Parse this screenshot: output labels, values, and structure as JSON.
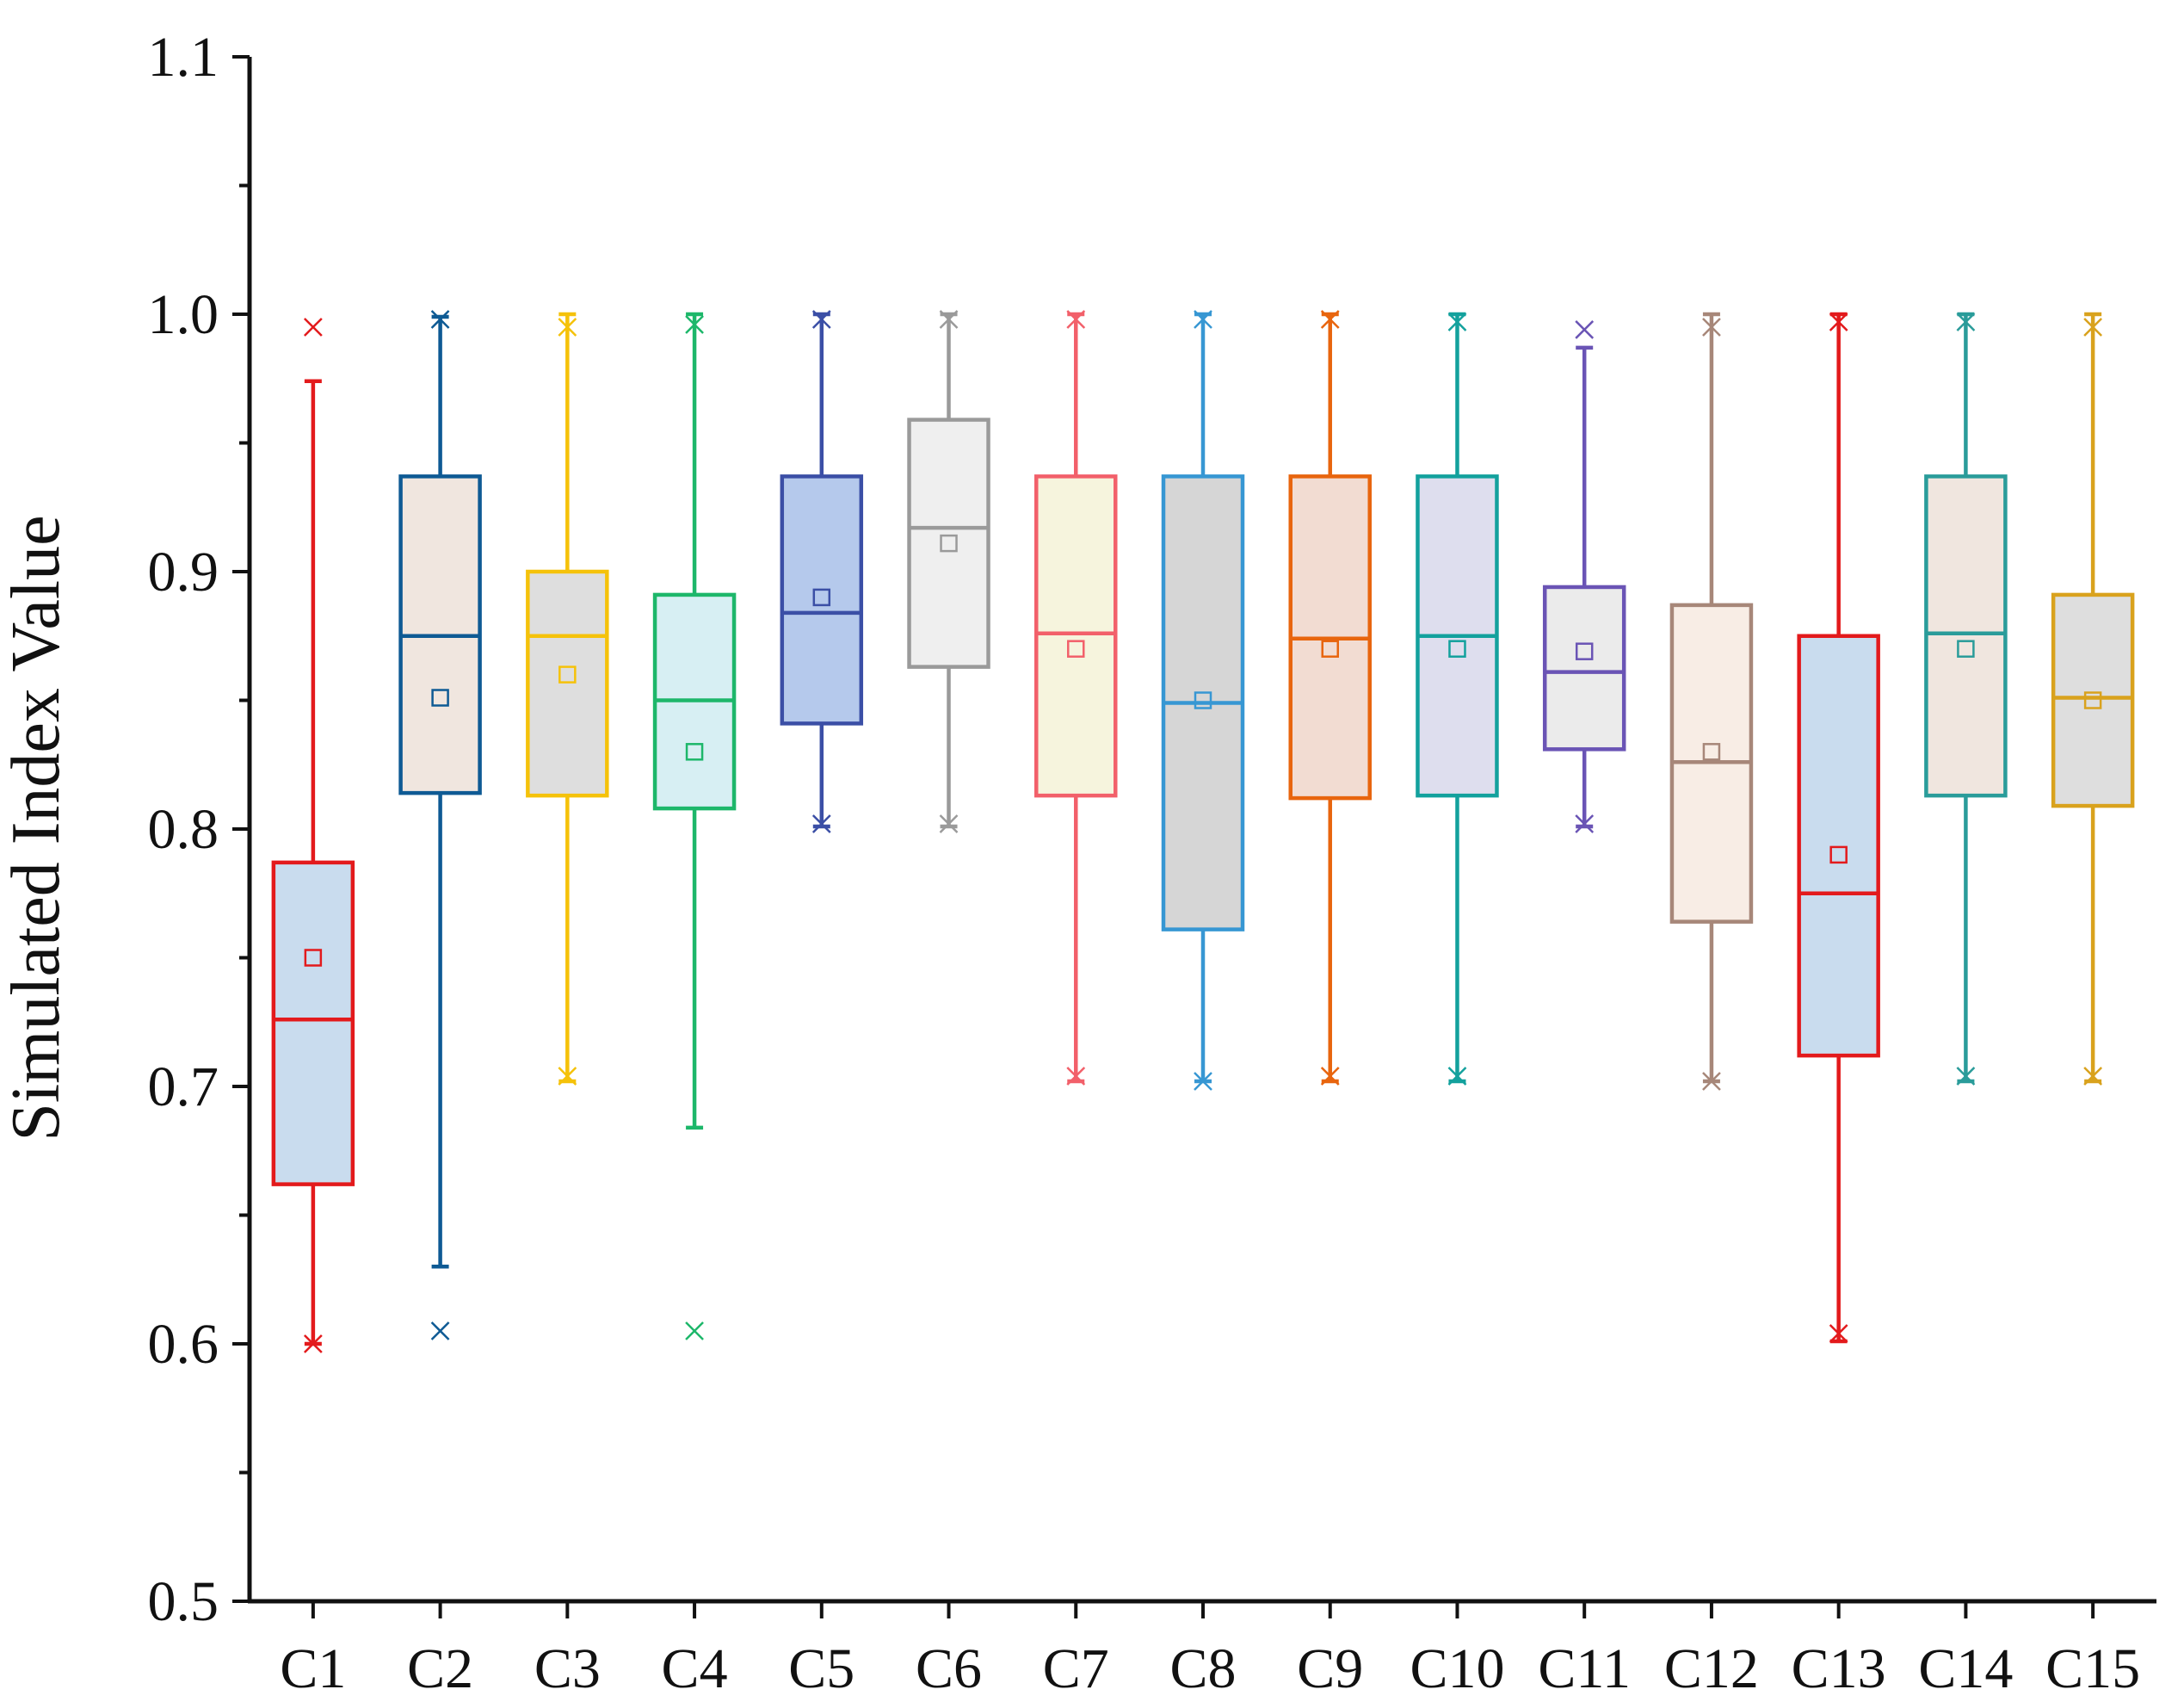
{
  "chart_data": {
    "type": "box",
    "title": "",
    "xlabel": "",
    "ylabel": "Simulated Index Value",
    "ylim": [
      0.5,
      1.1
    ],
    "yticks": [
      "0.5",
      "0.6",
      "0.7",
      "0.8",
      "0.9",
      "1.0",
      "1.1"
    ],
    "grid": false,
    "legend": "none",
    "series": [
      {
        "name": "C1",
        "color": "#e31a1c",
        "fill": "#c9dcee",
        "whisker_low": 0.6,
        "q1": 0.662,
        "median": 0.726,
        "q3": 0.787,
        "whisker_high": 0.974,
        "mean": 0.75,
        "x_min": 0.6,
        "x_max": 0.995
      },
      {
        "name": "C2",
        "color": "#0e5a94",
        "fill": "#f0e6df",
        "whisker_low": 0.63,
        "q1": 0.814,
        "median": 0.875,
        "q3": 0.937,
        "whisker_high": 0.999,
        "mean": 0.851,
        "x_min": 0.605,
        "x_max": 0.998
      },
      {
        "name": "C3",
        "color": "#f5c20a",
        "fill": "#dedede",
        "whisker_low": 0.702,
        "q1": 0.813,
        "median": 0.875,
        "q3": 0.9,
        "whisker_high": 1.0,
        "mean": 0.86,
        "x_min": 0.704,
        "x_max": 0.995
      },
      {
        "name": "C4",
        "color": "#1db76a",
        "fill": "#d7eff3",
        "whisker_low": 0.684,
        "q1": 0.808,
        "median": 0.85,
        "q3": 0.891,
        "whisker_high": 1.0,
        "mean": 0.83,
        "x_min": 0.605,
        "x_max": 0.996
      },
      {
        "name": "C5",
        "color": "#3b4fa6",
        "fill": "#b5c9ec",
        "whisker_low": 0.801,
        "q1": 0.841,
        "median": 0.884,
        "q3": 0.937,
        "whisker_high": 1.0,
        "mean": 0.89,
        "x_min": 0.802,
        "x_max": 0.998
      },
      {
        "name": "C6",
        "color": "#9a9a9a",
        "fill": "#efefef",
        "whisker_low": 0.801,
        "q1": 0.863,
        "median": 0.917,
        "q3": 0.959,
        "whisker_high": 1.0,
        "mean": 0.911,
        "x_min": 0.802,
        "x_max": 0.998
      },
      {
        "name": "C7",
        "color": "#f2606a",
        "fill": "#f6f4dd",
        "whisker_low": 0.702,
        "q1": 0.813,
        "median": 0.876,
        "q3": 0.937,
        "whisker_high": 1.0,
        "mean": 0.87,
        "x_min": 0.704,
        "x_max": 0.998
      },
      {
        "name": "C8",
        "color": "#3797d3",
        "fill": "#d6d6d6",
        "whisker_low": 0.702,
        "q1": 0.761,
        "median": 0.849,
        "q3": 0.937,
        "whisker_high": 1.0,
        "mean": 0.85,
        "x_min": 0.702,
        "x_max": 0.998
      },
      {
        "name": "C9",
        "color": "#e8650e",
        "fill": "#f2dcd2",
        "whisker_low": 0.702,
        "q1": 0.812,
        "median": 0.874,
        "q3": 0.937,
        "whisker_high": 1.0,
        "mean": 0.87,
        "x_min": 0.704,
        "x_max": 0.998
      },
      {
        "name": "C10",
        "color": "#13a19d",
        "fill": "#dedeee",
        "whisker_low": 0.702,
        "q1": 0.813,
        "median": 0.875,
        "q3": 0.937,
        "whisker_high": 1.0,
        "mean": 0.87,
        "x_min": 0.704,
        "x_max": 0.997
      },
      {
        "name": "C11",
        "color": "#6a54b5",
        "fill": "#ebebeb",
        "whisker_low": 0.801,
        "q1": 0.831,
        "median": 0.861,
        "q3": 0.894,
        "whisker_high": 0.987,
        "mean": 0.869,
        "x_min": 0.802,
        "x_max": 0.994
      },
      {
        "name": "C12",
        "color": "#a78779",
        "fill": "#f8ede5",
        "whisker_low": 0.702,
        "q1": 0.764,
        "median": 0.826,
        "q3": 0.887,
        "whisker_high": 1.0,
        "mean": 0.83,
        "x_min": 0.702,
        "x_max": 0.995
      },
      {
        "name": "C13",
        "color": "#e31a1c",
        "fill": "#c9dcee",
        "whisker_low": 0.601,
        "q1": 0.712,
        "median": 0.775,
        "q3": 0.875,
        "whisker_high": 1.0,
        "mean": 0.79,
        "x_min": 0.604,
        "x_max": 0.997
      },
      {
        "name": "C14",
        "color": "#2a9c9a",
        "fill": "#f0e6df",
        "whisker_low": 0.702,
        "q1": 0.813,
        "median": 0.876,
        "q3": 0.937,
        "whisker_high": 1.0,
        "mean": 0.87,
        "x_min": 0.704,
        "x_max": 0.997
      },
      {
        "name": "C15",
        "color": "#d9a21d",
        "fill": "#dedede",
        "whisker_low": 0.702,
        "q1": 0.809,
        "median": 0.851,
        "q3": 0.891,
        "whisker_high": 1.0,
        "mean": 0.85,
        "x_min": 0.704,
        "x_max": 0.995
      }
    ]
  }
}
